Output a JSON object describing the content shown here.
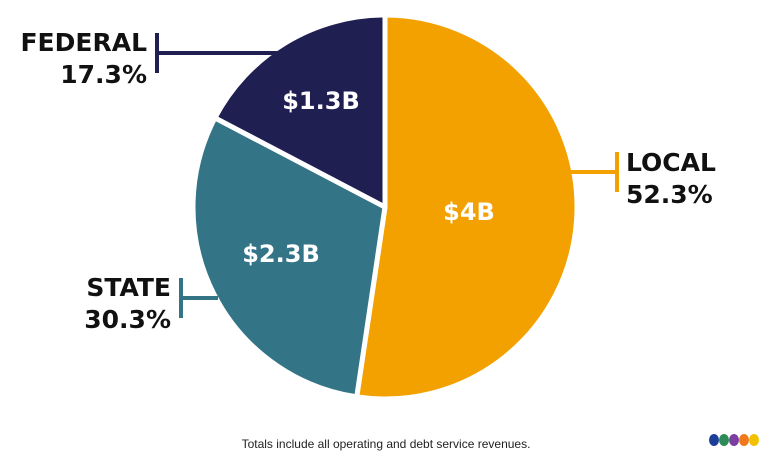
{
  "chart_data": {
    "type": "pie",
    "slices": [
      {
        "name": "LOCAL",
        "percent": "52.3%",
        "label": "$4B",
        "value": 52.3,
        "amount": 4.0,
        "color": "#F2A100"
      },
      {
        "name": "STATE",
        "percent": "30.3%",
        "label": "$2.3B",
        "value": 30.3,
        "amount": 2.3,
        "color": "#337587"
      },
      {
        "name": "FEDERAL",
        "percent": "17.3%",
        "label": "$1.3B",
        "value": 17.3,
        "amount": 1.3,
        "color": "#201F52"
      }
    ]
  },
  "footnote": "Totals include all operating and debt service revenues.",
  "brand_dots": [
    "#1B3F99",
    "#2E8B57",
    "#7B3FA0",
    "#F07A1A",
    "#F2C200"
  ]
}
